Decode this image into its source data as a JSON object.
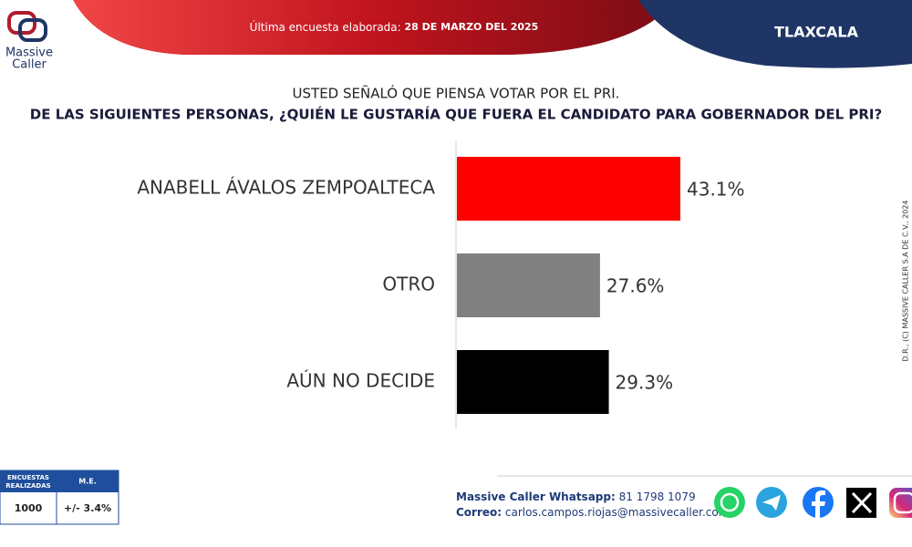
{
  "header": {
    "survey_label": "Última encuesta elaborada:",
    "survey_date": "28 DE MARZO DEL 2025",
    "region": "TLAXCALA"
  },
  "logo": {
    "line1": "Massive",
    "line2": "Caller"
  },
  "chart_data": {
    "type": "hbar",
    "subtitle": "USTED SEÑALÓ QUE PIENSA VOTAR POR EL PRI.",
    "title": "DE LAS SIGUIENTES PERSONAS, ¿QUIÉN LE GUSTARÍA QUE FUERA EL CANDIDATO PARA GOBERNADOR DEL PRI?",
    "categories": [
      "ANABELL ÁVALOS ZEMPOALTECA",
      "OTRO",
      "AÚN NO DECIDE"
    ],
    "values": [
      43.1,
      27.6,
      29.3
    ],
    "value_labels": [
      "43.1%",
      "27.6%",
      "29.3%"
    ],
    "colors": [
      "#ff0000",
      "#808080",
      "#000000"
    ]
  },
  "copyright": "D.R., (C) MASSIVE CALLER S.A DE C.V., 2024",
  "table": {
    "headers": [
      "ENCUESTAS REALIZADAS",
      "M.E."
    ],
    "rows": [
      [
        "1000",
        "+/- 3.4%"
      ]
    ]
  },
  "footer": {
    "whatsapp_label": "Massive Caller Whatsapp:",
    "whatsapp": "81 1798 1079",
    "email_label": "Correo:",
    "email": "carlos.campos.riojas@massivecaller.com"
  }
}
